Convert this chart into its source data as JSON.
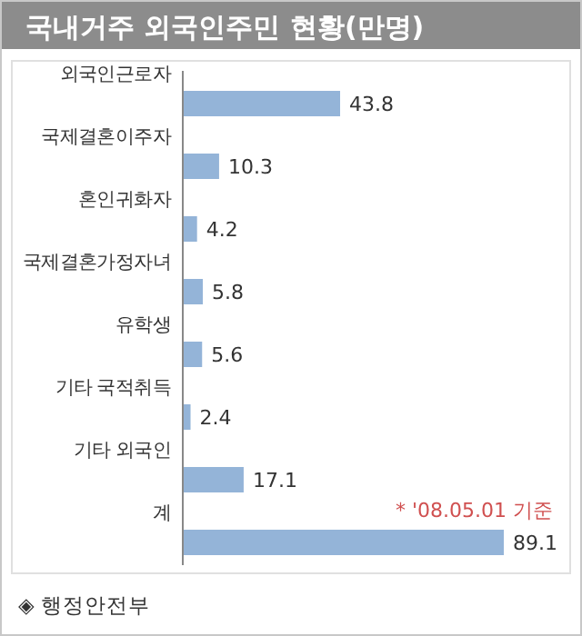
{
  "chart_data": {
    "type": "bar",
    "orientation": "horizontal",
    "title": "국내거주 외국인주민 현황(만명)",
    "categories": [
      "외국인근로자",
      "국제결혼이주자",
      "혼인귀화자",
      "국제결혼가정자녀",
      "유학생",
      "기타 국적취득",
      "기타 외국인",
      "계"
    ],
    "values": [
      43.8,
      10.3,
      4.2,
      5.8,
      5.6,
      2.4,
      17.1,
      89.1
    ],
    "color": "#94b4d8",
    "data_labels": true,
    "annotations": [
      "* '08.05.01 기준",
      "◈ 행정안전부"
    ]
  }
}
